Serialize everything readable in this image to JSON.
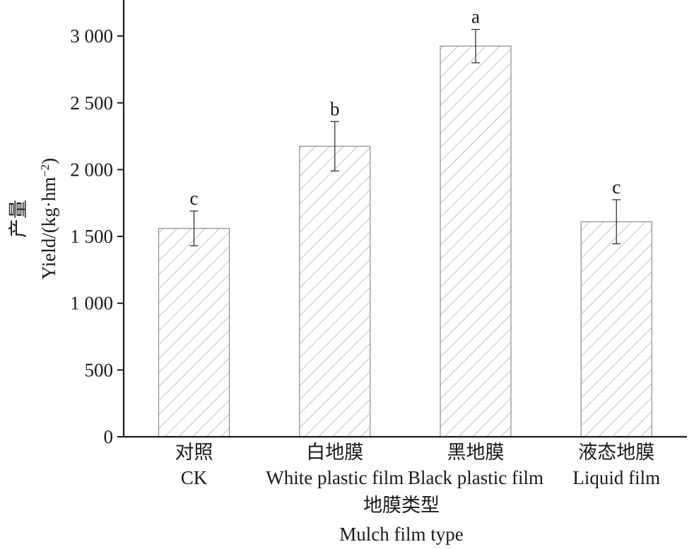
{
  "chart_data": {
    "type": "bar",
    "categories": [
      {
        "cn": "对照",
        "en": "CK"
      },
      {
        "cn": "白地膜",
        "en": "White plastic film"
      },
      {
        "cn": "黑地膜",
        "en": "Black plastic film"
      },
      {
        "cn": "液态地膜",
        "en": "Liquid film"
      }
    ],
    "values": [
      1560,
      2175,
      2925,
      1610
    ],
    "errors": [
      130,
      185,
      125,
      165
    ],
    "significance": [
      "c",
      "b",
      "a",
      "c"
    ],
    "xlabel": {
      "cn": "地膜类型",
      "en": "Mulch film type"
    },
    "ylabel": {
      "cn": "产量",
      "en": "Yield/(kg·hm",
      "sup": "−2",
      "close": ")"
    },
    "yticks": [
      0,
      500,
      1000,
      1500,
      2000,
      2500,
      3000
    ],
    "ytick_labels": [
      "0",
      "500",
      "1 000",
      "1 500",
      "2 000",
      "2 500",
      "3 000"
    ],
    "ylim": [
      0,
      3270
    ],
    "bar_fill": "hatched",
    "hatch_color": "#9a9a9a",
    "bar_edge_color": "#8c8c8c",
    "axis_color": "#1a1a1a",
    "grid": false
  }
}
